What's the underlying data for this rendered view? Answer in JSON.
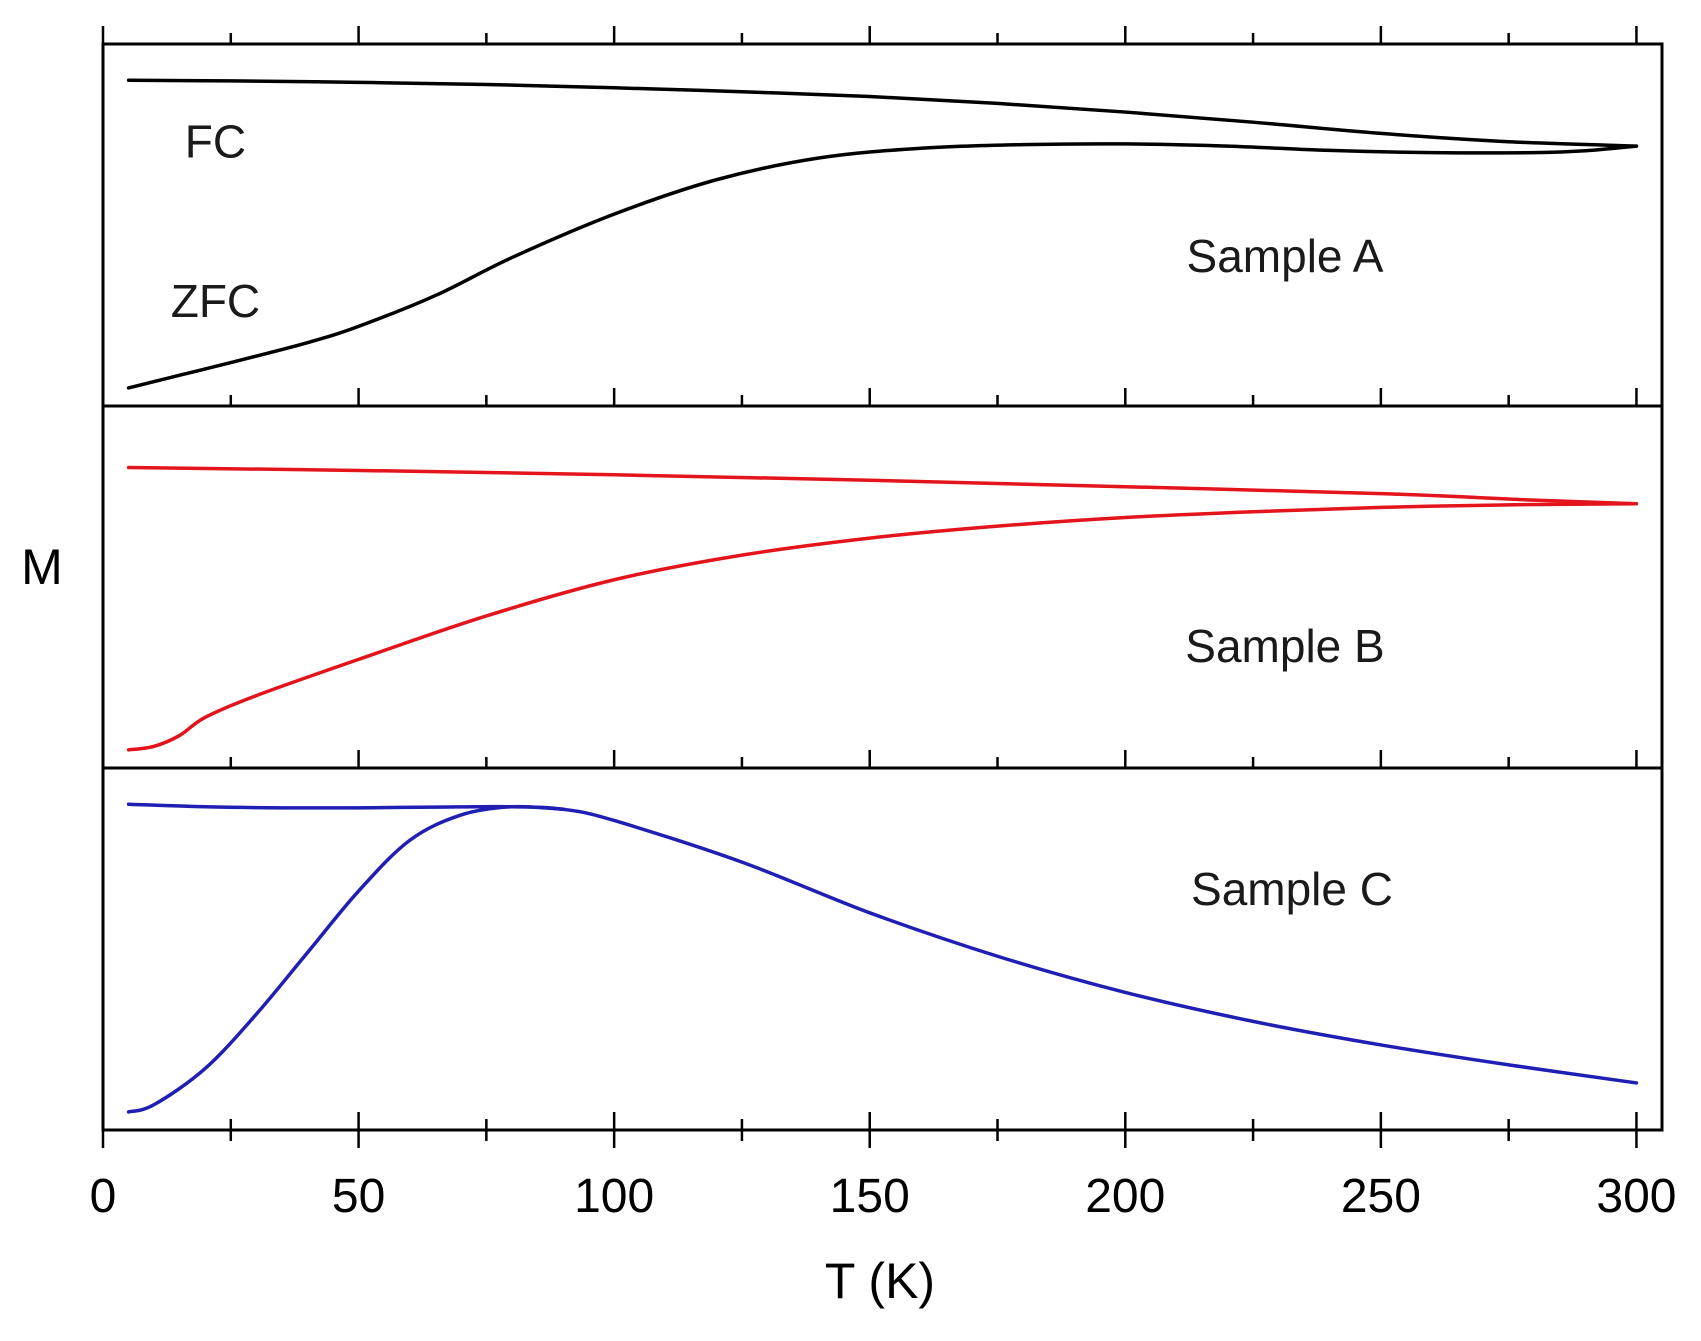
{
  "chart_data": {
    "type": "line",
    "xlabel": "T (K)",
    "ylabel": "M",
    "xlim": [
      0,
      305
    ],
    "x_ticks": [
      0,
      50,
      100,
      150,
      200,
      250,
      300
    ],
    "x_minor_ticks": [
      25,
      75,
      125,
      175,
      225,
      275
    ],
    "y_ticks_shown": false,
    "panels": [
      {
        "label": "Sample A",
        "color": "#000000",
        "ylim": [
          0,
          1
        ],
        "series": [
          {
            "name": "FC",
            "x": [
              5,
              25,
              50,
              75,
              100,
              125,
              150,
              175,
              200,
              225,
              250,
              275,
              300
            ],
            "y": [
              0.9,
              0.898,
              0.894,
              0.888,
              0.879,
              0.868,
              0.855,
              0.836,
              0.812,
              0.784,
              0.753,
              0.73,
              0.718
            ]
          },
          {
            "name": "ZFC",
            "x": [
              5,
              15,
              25,
              40,
              50,
              65,
              80,
              100,
              120,
              140,
              160,
              180,
              200,
              220,
              240,
              260,
              280,
              290,
              300
            ],
            "y": [
              0.05,
              0.085,
              0.12,
              0.175,
              0.22,
              0.305,
              0.41,
              0.53,
              0.625,
              0.685,
              0.712,
              0.722,
              0.724,
              0.718,
              0.706,
              0.7,
              0.7,
              0.705,
              0.718
            ]
          }
        ],
        "annotations": [
          {
            "text": "FC",
            "x": 22,
            "y": 0.73
          },
          {
            "text": "ZFC",
            "x": 22,
            "y": 0.29
          }
        ]
      },
      {
        "label": "Sample B",
        "color": "#e3141b",
        "ylim": [
          0,
          1
        ],
        "series": [
          {
            "name": "FC",
            "x": [
              5,
              50,
              100,
              150,
              200,
              250,
              280,
              300
            ],
            "y": [
              0.83,
              0.822,
              0.81,
              0.795,
              0.777,
              0.758,
              0.74,
              0.73
            ]
          },
          {
            "name": "ZFC",
            "x": [
              5,
              10,
              15,
              20,
              30,
              50,
              75,
              100,
              125,
              150,
              175,
              200,
              225,
              250,
              275,
              300
            ],
            "y": [
              0.05,
              0.06,
              0.09,
              0.14,
              0.2,
              0.3,
              0.42,
              0.52,
              0.588,
              0.635,
              0.668,
              0.692,
              0.708,
              0.72,
              0.727,
              0.73
            ]
          }
        ]
      },
      {
        "label": "Sample C",
        "color": "#1f1fb4",
        "ylim": [
          0,
          1
        ],
        "series": [
          {
            "name": "FC",
            "x": [
              5,
              20,
              35,
              50,
              65,
              80,
              90,
              100,
              125,
              150,
              175,
              200,
              225,
              250,
              275,
              300
            ],
            "y": [
              0.9,
              0.893,
              0.89,
              0.89,
              0.892,
              0.893,
              0.886,
              0.855,
              0.74,
              0.6,
              0.48,
              0.38,
              0.3,
              0.235,
              0.18,
              0.13
            ]
          },
          {
            "name": "ZFC",
            "x": [
              5,
              10,
              20,
              30,
              40,
              50,
              60,
              70,
              80,
              90
            ],
            "y": [
              0.05,
              0.07,
              0.17,
              0.32,
              0.49,
              0.66,
              0.8,
              0.87,
              0.893,
              0.886
            ]
          }
        ]
      }
    ]
  }
}
